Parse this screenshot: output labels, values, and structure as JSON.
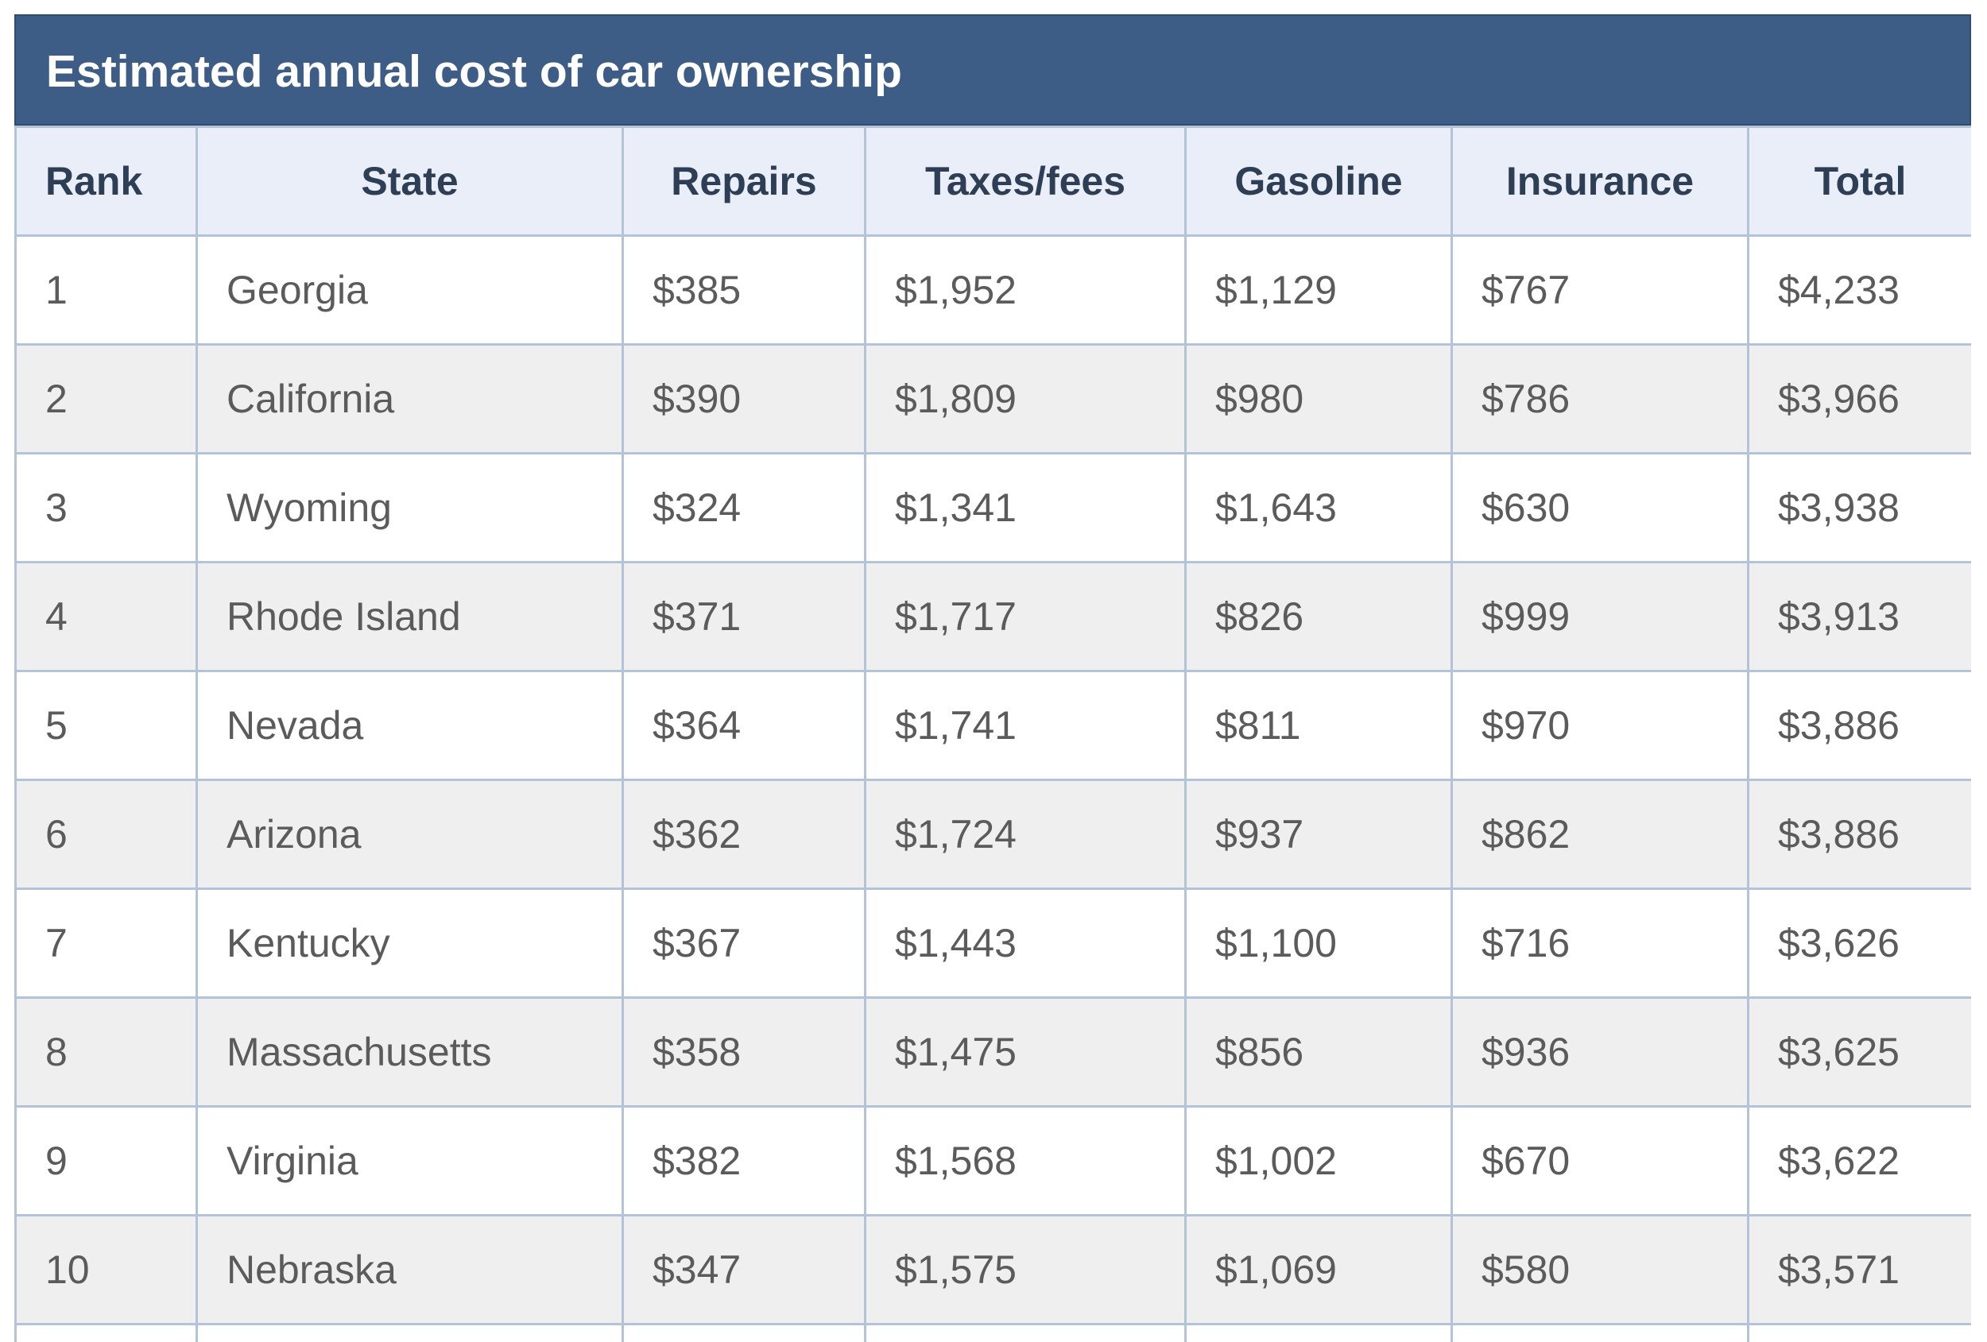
{
  "title": "Estimated annual cost of car ownership",
  "columns": [
    "Rank",
    "State",
    "Repairs",
    "Taxes/fees",
    "Gasoline",
    "Insurance",
    "Total"
  ],
  "rows": [
    [
      "1",
      "Georgia",
      "$385",
      "$1,952",
      "$1,129",
      "$767",
      "$4,233"
    ],
    [
      "2",
      "California",
      "$390",
      "$1,809",
      "$980",
      "$786",
      "$3,966"
    ],
    [
      "3",
      "Wyoming",
      "$324",
      "$1,341",
      "$1,643",
      "$630",
      "$3,938"
    ],
    [
      "4",
      "Rhode Island",
      "$371",
      "$1,717",
      "$826",
      "$999",
      "$3,913"
    ],
    [
      "5",
      "Nevada",
      "$364",
      "$1,741",
      "$811",
      "$970",
      "$3,886"
    ],
    [
      "6",
      "Arizona",
      "$362",
      "$1,724",
      "$937",
      "$862",
      "$3,886"
    ],
    [
      "7",
      "Kentucky",
      "$367",
      "$1,443",
      "$1,100",
      "$716",
      "$3,626"
    ],
    [
      "8",
      "Massachusetts",
      "$358",
      "$1,475",
      "$856",
      "$936",
      "$3,625"
    ],
    [
      "9",
      "Virginia",
      "$382",
      "$1,568",
      "$1,002",
      "$670",
      "$3,622"
    ],
    [
      "10",
      "Nebraska",
      "$347",
      "$1,575",
      "$1,069",
      "$580",
      "$3,571"
    ]
  ]
}
